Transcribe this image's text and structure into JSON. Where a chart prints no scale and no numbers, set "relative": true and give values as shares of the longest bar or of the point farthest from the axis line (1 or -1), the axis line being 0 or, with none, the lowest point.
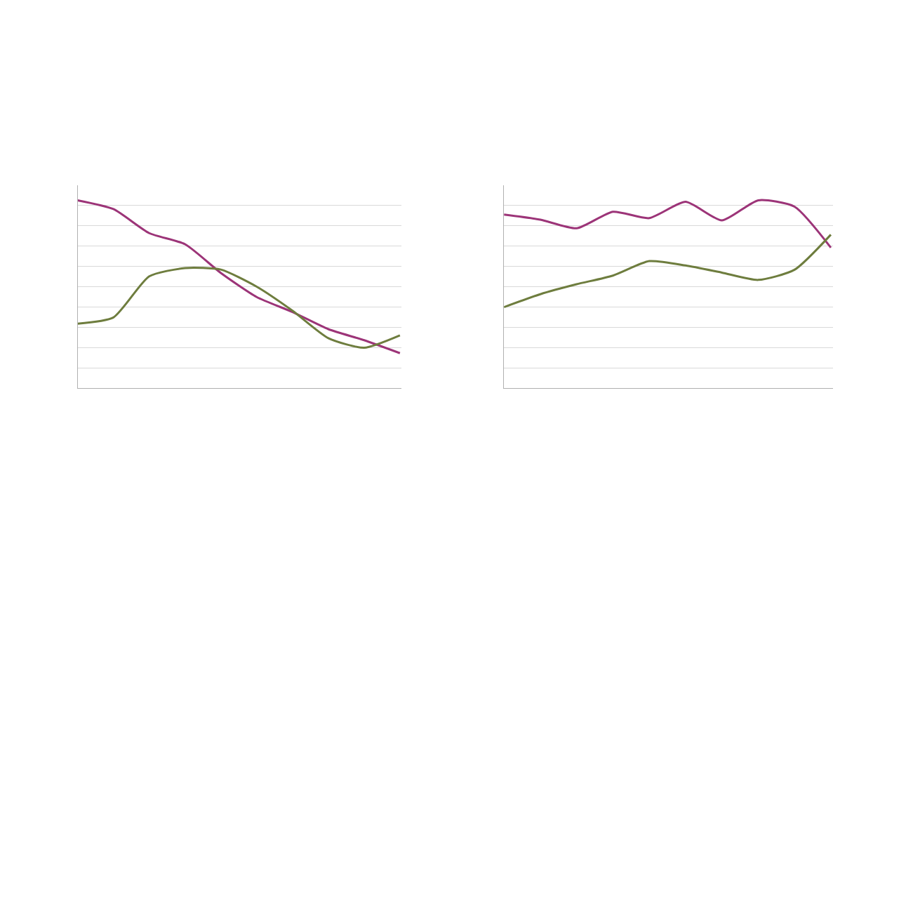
{
  "chart_data": [
    {
      "type": "line",
      "relative": true,
      "categories": [
        null,
        null,
        null,
        null,
        null,
        null,
        null,
        null,
        null,
        null
      ],
      "grid": "y",
      "series": [
        {
          "color": "#9c3478",
          "values": [
            1,
            0.953,
            0.825,
            0.766,
            0.613,
            0.485,
            0.405,
            0.314,
            0.255,
            0.186
          ]
        },
        {
          "color": "#6e7d3e",
          "values": [
            0.343,
            0.376,
            0.595,
            0.639,
            0.631,
            0.54,
            0.412,
            0.266,
            0.215,
            0.281
          ]
        }
      ]
    },
    {
      "type": "line",
      "relative": true,
      "categories": [
        null,
        null,
        null,
        null,
        null,
        null,
        null,
        null,
        null,
        null
      ],
      "grid": "y",
      "series": [
        {
          "color": "#9c3478",
          "values": [
            0.924,
            0.897,
            0.851,
            0.939,
            0.905,
            0.992,
            0.893,
            1,
            0.966,
            0.748
          ]
        },
        {
          "color": "#6e7d3e",
          "values": [
            0.431,
            0.5,
            0.553,
            0.599,
            0.676,
            0.653,
            0.615,
            0.576,
            0.63,
            0.817
          ]
        }
      ]
    }
  ]
}
